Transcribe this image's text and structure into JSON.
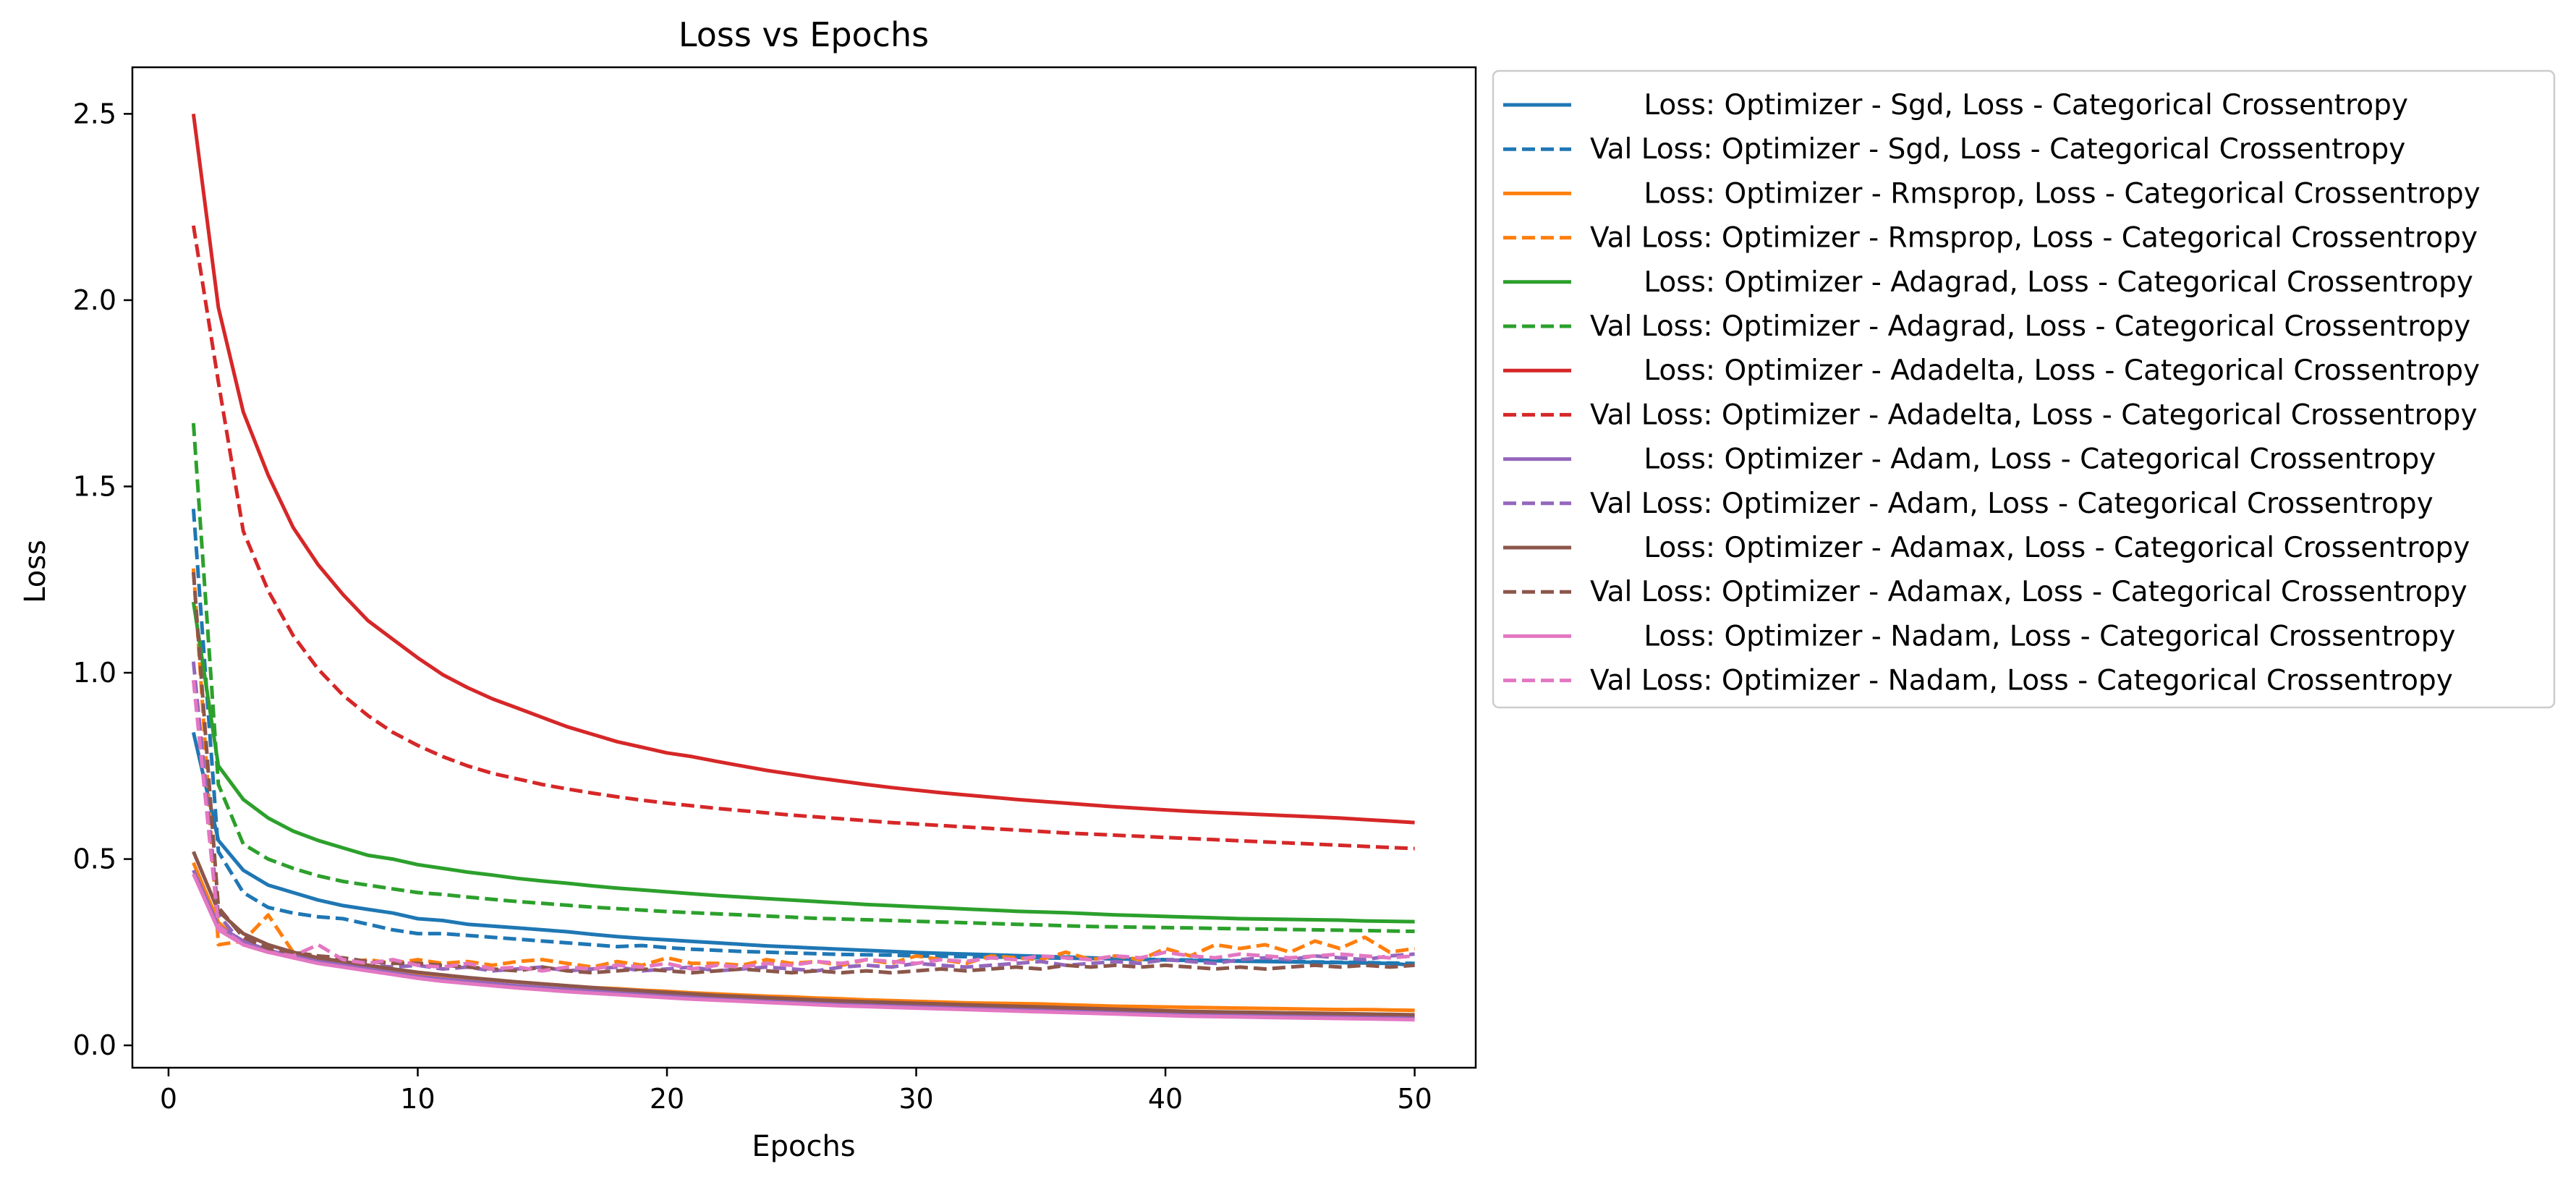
{
  "chart_data": {
    "type": "line",
    "title": "Loss vs Epochs",
    "xlabel": "Epochs",
    "ylabel": "Loss",
    "xlim": [
      -1.45,
      52.45
    ],
    "ylim": [
      -0.06,
      2.625
    ],
    "xticks": [
      0,
      10,
      20,
      30,
      40,
      50
    ],
    "xtick_labels": [
      "0",
      "10",
      "20",
      "30",
      "40",
      "50"
    ],
    "yticks": [
      0.0,
      0.5,
      1.0,
      1.5,
      2.0,
      2.5
    ],
    "ytick_labels": [
      "0.0",
      "0.5",
      "1.0",
      "1.5",
      "2.0",
      "2.5"
    ],
    "grid": false,
    "legend_position": "outside-right-top",
    "x": [
      1,
      2,
      3,
      4,
      5,
      6,
      7,
      8,
      9,
      10,
      11,
      12,
      13,
      14,
      15,
      16,
      17,
      18,
      19,
      20,
      21,
      22,
      23,
      24,
      25,
      26,
      27,
      28,
      29,
      30,
      31,
      32,
      33,
      34,
      35,
      36,
      37,
      38,
      39,
      40,
      41,
      42,
      43,
      44,
      45,
      46,
      47,
      48,
      49,
      50
    ],
    "series": [
      {
        "name": "      Loss: Optimizer - Sgd, Loss - Categorical Crossentropy",
        "color": "#1f77b4",
        "dash": false,
        "values": [
          0.84,
          0.55,
          0.47,
          0.43,
          0.41,
          0.39,
          0.375,
          0.365,
          0.355,
          0.34,
          0.335,
          0.325,
          0.32,
          0.315,
          0.31,
          0.305,
          0.298,
          0.292,
          0.287,
          0.283,
          0.279,
          0.275,
          0.271,
          0.267,
          0.264,
          0.261,
          0.258,
          0.255,
          0.252,
          0.249,
          0.247,
          0.245,
          0.243,
          0.241,
          0.239,
          0.237,
          0.235,
          0.233,
          0.231,
          0.229,
          0.228,
          0.227,
          0.226,
          0.225,
          0.224,
          0.223,
          0.222,
          0.221,
          0.22,
          0.215
        ]
      },
      {
        "name": "Val Loss: Optimizer - Sgd, Loss - Categorical Crossentropy",
        "color": "#1f77b4",
        "dash": true,
        "values": [
          1.44,
          0.52,
          0.41,
          0.37,
          0.355,
          0.345,
          0.34,
          0.325,
          0.31,
          0.3,
          0.3,
          0.295,
          0.29,
          0.285,
          0.28,
          0.275,
          0.27,
          0.265,
          0.268,
          0.262,
          0.258,
          0.255,
          0.252,
          0.25,
          0.248,
          0.246,
          0.244,
          0.243,
          0.242,
          0.24,
          0.239,
          0.238,
          0.237,
          0.236,
          0.235,
          0.234,
          0.233,
          0.232,
          0.231,
          0.23,
          0.229,
          0.228,
          0.227,
          0.226,
          0.225,
          0.224,
          0.223,
          0.222,
          0.221,
          0.22
        ]
      },
      {
        "name": "      Loss: Optimizer - Rmsprop, Loss - Categorical Crossentropy",
        "color": "#ff7f0e",
        "dash": false,
        "values": [
          0.49,
          0.33,
          0.27,
          0.25,
          0.24,
          0.23,
          0.22,
          0.21,
          0.2,
          0.19,
          0.185,
          0.18,
          0.175,
          0.17,
          0.165,
          0.16,
          0.155,
          0.152,
          0.148,
          0.145,
          0.141,
          0.138,
          0.135,
          0.132,
          0.13,
          0.127,
          0.125,
          0.122,
          0.12,
          0.118,
          0.116,
          0.114,
          0.113,
          0.112,
          0.111,
          0.109,
          0.107,
          0.105,
          0.104,
          0.103,
          0.102,
          0.101,
          0.1,
          0.099,
          0.098,
          0.097,
          0.096,
          0.096,
          0.095,
          0.094
        ]
      },
      {
        "name": "Val Loss: Optimizer - Rmsprop, Loss - Categorical Crossentropy",
        "color": "#ff7f0e",
        "dash": true,
        "values": [
          1.28,
          0.27,
          0.28,
          0.35,
          0.25,
          0.24,
          0.22,
          0.23,
          0.22,
          0.23,
          0.22,
          0.225,
          0.215,
          0.225,
          0.23,
          0.22,
          0.21,
          0.225,
          0.215,
          0.235,
          0.22,
          0.22,
          0.215,
          0.23,
          0.22,
          0.225,
          0.215,
          0.23,
          0.22,
          0.24,
          0.23,
          0.22,
          0.24,
          0.235,
          0.23,
          0.25,
          0.23,
          0.24,
          0.23,
          0.26,
          0.24,
          0.27,
          0.26,
          0.27,
          0.25,
          0.28,
          0.26,
          0.29,
          0.25,
          0.26
        ]
      },
      {
        "name": "      Loss: Optimizer - Adagrad, Loss - Categorical Crossentropy",
        "color": "#2ca02c",
        "dash": false,
        "values": [
          1.19,
          0.75,
          0.66,
          0.61,
          0.575,
          0.55,
          0.53,
          0.51,
          0.5,
          0.485,
          0.475,
          0.465,
          0.457,
          0.448,
          0.441,
          0.435,
          0.428,
          0.422,
          0.417,
          0.412,
          0.407,
          0.402,
          0.398,
          0.394,
          0.39,
          0.386,
          0.382,
          0.378,
          0.375,
          0.372,
          0.369,
          0.366,
          0.363,
          0.36,
          0.358,
          0.356,
          0.353,
          0.35,
          0.348,
          0.346,
          0.344,
          0.342,
          0.34,
          0.339,
          0.338,
          0.337,
          0.336,
          0.334,
          0.333,
          0.332
        ]
      },
      {
        "name": "Val Loss: Optimizer - Adagrad, Loss - Categorical Crossentropy",
        "color": "#2ca02c",
        "dash": true,
        "values": [
          1.67,
          0.7,
          0.54,
          0.5,
          0.475,
          0.455,
          0.44,
          0.43,
          0.42,
          0.41,
          0.405,
          0.398,
          0.392,
          0.386,
          0.381,
          0.376,
          0.371,
          0.367,
          0.363,
          0.359,
          0.356,
          0.353,
          0.35,
          0.347,
          0.344,
          0.341,
          0.339,
          0.337,
          0.335,
          0.333,
          0.331,
          0.329,
          0.327,
          0.325,
          0.323,
          0.321,
          0.319,
          0.318,
          0.317,
          0.316,
          0.315,
          0.314,
          0.313,
          0.312,
          0.311,
          0.31,
          0.309,
          0.308,
          0.307,
          0.306
        ]
      },
      {
        "name": "      Loss: Optimizer - Adadelta, Loss - Categorical Crossentropy",
        "color": "#d62728",
        "dash": false,
        "values": [
          2.5,
          1.98,
          1.7,
          1.53,
          1.39,
          1.29,
          1.21,
          1.14,
          1.09,
          1.04,
          0.995,
          0.96,
          0.93,
          0.905,
          0.88,
          0.855,
          0.835,
          0.815,
          0.8,
          0.785,
          0.775,
          0.762,
          0.75,
          0.738,
          0.728,
          0.718,
          0.709,
          0.7,
          0.692,
          0.685,
          0.678,
          0.672,
          0.666,
          0.66,
          0.655,
          0.65,
          0.645,
          0.64,
          0.636,
          0.632,
          0.628,
          0.625,
          0.622,
          0.619,
          0.616,
          0.613,
          0.61,
          0.606,
          0.602,
          0.598
        ]
      },
      {
        "name": "Val Loss: Optimizer - Adadelta, Loss - Categorical Crossentropy",
        "color": "#d62728",
        "dash": true,
        "values": [
          2.2,
          1.78,
          1.38,
          1.22,
          1.1,
          1.01,
          0.94,
          0.885,
          0.84,
          0.805,
          0.775,
          0.75,
          0.73,
          0.715,
          0.7,
          0.688,
          0.677,
          0.667,
          0.658,
          0.65,
          0.643,
          0.636,
          0.63,
          0.624,
          0.618,
          0.613,
          0.608,
          0.603,
          0.598,
          0.594,
          0.59,
          0.586,
          0.582,
          0.578,
          0.574,
          0.57,
          0.567,
          0.564,
          0.561,
          0.558,
          0.555,
          0.552,
          0.549,
          0.546,
          0.543,
          0.54,
          0.537,
          0.534,
          0.531,
          0.528
        ]
      },
      {
        "name": "      Loss: Optimizer - Adam, Loss - Categorical Crossentropy",
        "color": "#9467bd",
        "dash": false,
        "values": [
          0.47,
          0.32,
          0.28,
          0.255,
          0.24,
          0.225,
          0.215,
          0.205,
          0.195,
          0.185,
          0.178,
          0.172,
          0.166,
          0.16,
          0.155,
          0.15,
          0.146,
          0.142,
          0.138,
          0.134,
          0.13,
          0.127,
          0.124,
          0.121,
          0.118,
          0.115,
          0.112,
          0.11,
          0.108,
          0.106,
          0.104,
          0.102,
          0.1,
          0.098,
          0.096,
          0.094,
          0.092,
          0.09,
          0.088,
          0.086,
          0.085,
          0.084,
          0.083,
          0.082,
          0.081,
          0.08,
          0.079,
          0.078,
          0.077,
          0.076
        ]
      },
      {
        "name": "Val Loss: Optimizer - Adam, Loss - Categorical Crossentropy",
        "color": "#9467bd",
        "dash": true,
        "values": [
          1.03,
          0.35,
          0.27,
          0.25,
          0.24,
          0.225,
          0.22,
          0.215,
          0.21,
          0.215,
          0.205,
          0.21,
          0.2,
          0.205,
          0.21,
          0.2,
          0.205,
          0.21,
          0.2,
          0.205,
          0.21,
          0.2,
          0.205,
          0.21,
          0.205,
          0.2,
          0.21,
          0.215,
          0.21,
          0.22,
          0.215,
          0.21,
          0.215,
          0.22,
          0.225,
          0.215,
          0.22,
          0.225,
          0.22,
          0.23,
          0.225,
          0.22,
          0.23,
          0.235,
          0.23,
          0.24,
          0.235,
          0.23,
          0.24,
          0.245
        ]
      },
      {
        "name": "      Loss: Optimizer - Adamax, Loss - Categorical Crossentropy",
        "color": "#8c564b",
        "dash": false,
        "values": [
          0.52,
          0.36,
          0.3,
          0.27,
          0.25,
          0.235,
          0.225,
          0.215,
          0.205,
          0.196,
          0.189,
          0.182,
          0.176,
          0.17,
          0.165,
          0.16,
          0.155,
          0.15,
          0.146,
          0.142,
          0.138,
          0.134,
          0.131,
          0.128,
          0.125,
          0.122,
          0.119,
          0.117,
          0.115,
          0.113,
          0.111,
          0.109,
          0.107,
          0.105,
          0.103,
          0.101,
          0.099,
          0.097,
          0.095,
          0.093,
          0.091,
          0.09,
          0.089,
          0.088,
          0.087,
          0.086,
          0.085,
          0.084,
          0.083,
          0.082
        ]
      },
      {
        "name": "Val Loss: Optimizer - Adamax, Loss - Categorical Crossentropy",
        "color": "#8c564b",
        "dash": true,
        "values": [
          1.27,
          0.37,
          0.29,
          0.26,
          0.25,
          0.24,
          0.235,
          0.225,
          0.22,
          0.22,
          0.215,
          0.21,
          0.205,
          0.2,
          0.21,
          0.2,
          0.195,
          0.2,
          0.205,
          0.2,
          0.195,
          0.2,
          0.205,
          0.2,
          0.195,
          0.2,
          0.195,
          0.2,
          0.195,
          0.2,
          0.205,
          0.2,
          0.205,
          0.21,
          0.205,
          0.215,
          0.21,
          0.215,
          0.21,
          0.215,
          0.21,
          0.205,
          0.21,
          0.205,
          0.21,
          0.215,
          0.21,
          0.215,
          0.21,
          0.215
        ]
      },
      {
        "name": "      Loss: Optimizer - Nadam, Loss - Categorical Crossentropy",
        "color": "#e377c2",
        "dash": false,
        "values": [
          0.46,
          0.31,
          0.27,
          0.25,
          0.235,
          0.22,
          0.21,
          0.2,
          0.19,
          0.18,
          0.172,
          0.166,
          0.16,
          0.154,
          0.149,
          0.144,
          0.14,
          0.136,
          0.132,
          0.128,
          0.124,
          0.121,
          0.118,
          0.115,
          0.112,
          0.109,
          0.106,
          0.104,
          0.102,
          0.1,
          0.098,
          0.096,
          0.094,
          0.092,
          0.09,
          0.088,
          0.086,
          0.084,
          0.082,
          0.08,
          0.078,
          0.077,
          0.076,
          0.075,
          0.074,
          0.073,
          0.072,
          0.071,
          0.07,
          0.069
        ]
      },
      {
        "name": "Val Loss: Optimizer - Nadam, Loss - Categorical Crossentropy",
        "color": "#e377c2",
        "dash": true,
        "values": [
          0.98,
          0.32,
          0.27,
          0.25,
          0.24,
          0.27,
          0.23,
          0.22,
          0.23,
          0.215,
          0.21,
          0.22,
          0.205,
          0.21,
          0.2,
          0.21,
          0.205,
          0.215,
          0.21,
          0.22,
          0.205,
          0.215,
          0.21,
          0.22,
          0.215,
          0.225,
          0.22,
          0.23,
          0.225,
          0.22,
          0.23,
          0.225,
          0.235,
          0.23,
          0.24,
          0.235,
          0.23,
          0.24,
          0.235,
          0.25,
          0.24,
          0.235,
          0.245,
          0.24,
          0.235,
          0.24,
          0.245,
          0.24,
          0.235,
          0.24
        ]
      }
    ]
  }
}
